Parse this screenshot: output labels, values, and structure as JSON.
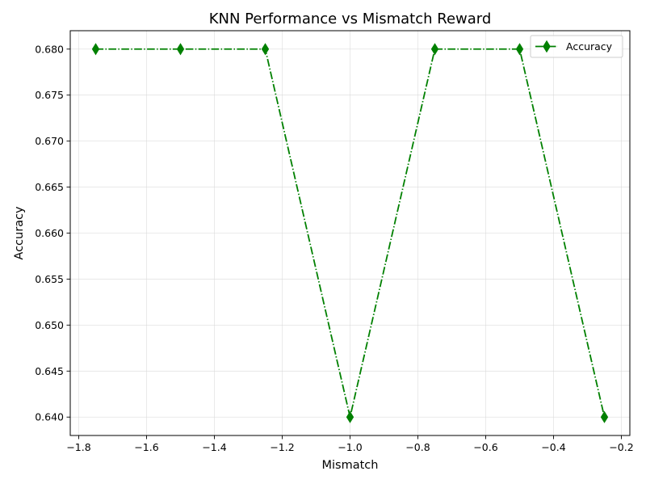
{
  "chart_data": {
    "type": "line",
    "title": "KNN Performance vs Mismatch Reward",
    "xlabel": "Mismatch",
    "ylabel": "Accuracy",
    "xlim": [
      -1.825,
      -0.175
    ],
    "ylim": [
      0.638,
      0.682
    ],
    "x_ticks": [
      -1.8,
      -1.6,
      -1.4,
      -1.2,
      -1.0,
      -0.8,
      -0.6,
      -0.4,
      -0.2
    ],
    "x_tick_labels": [
      "−1.8",
      "−1.6",
      "−1.4",
      "−1.2",
      "−1.0",
      "−0.8",
      "−0.6",
      "−0.4",
      "−0.2"
    ],
    "y_ticks": [
      0.64,
      0.645,
      0.65,
      0.655,
      0.66,
      0.665,
      0.67,
      0.675,
      0.68
    ],
    "y_tick_labels": [
      "0.640",
      "0.645",
      "0.650",
      "0.655",
      "0.660",
      "0.665",
      "0.670",
      "0.675",
      "0.680"
    ],
    "grid": true,
    "legend_position": "top-right",
    "series": [
      {
        "name": "Accuracy",
        "color": "#008000",
        "line_style": "dash-dot",
        "marker": "thin-diamond",
        "x": [
          -1.75,
          -1.5,
          -1.25,
          -1.0,
          -0.75,
          -0.5,
          -0.25
        ],
        "y": [
          0.68,
          0.68,
          0.68,
          0.64,
          0.68,
          0.68,
          0.64
        ]
      }
    ]
  }
}
